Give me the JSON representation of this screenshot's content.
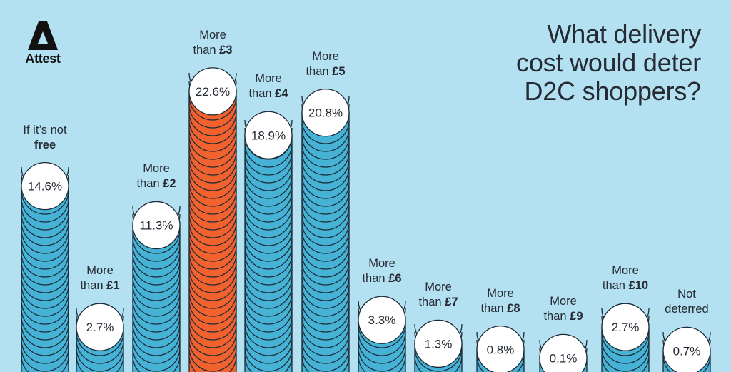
{
  "brand": {
    "name": "Attest",
    "logo_icon": "attest-triangle-logo"
  },
  "title_lines": [
    "What delivery",
    "cost would deter",
    "D2C shoppers?"
  ],
  "colors": {
    "background": "#b3e1f1",
    "stack_default": "#46b3d6",
    "stack_highlight": "#f2622e",
    "cap": "#ffffff",
    "outline": "#1c2a36",
    "text": "#252a33"
  },
  "chart_data": {
    "type": "bar",
    "style": "stacked-coins",
    "title": "What delivery cost would deter D2C shoppers?",
    "xlabel": "",
    "ylabel": "",
    "unit": "%",
    "categories": [
      {
        "line1": "If it’s not",
        "line2_plain": "",
        "line2_bold": "free"
      },
      {
        "line1": "More",
        "line2_plain": "than ",
        "line2_bold": "£1"
      },
      {
        "line1": "More",
        "line2_plain": "than ",
        "line2_bold": "£2"
      },
      {
        "line1": "More",
        "line2_plain": "than ",
        "line2_bold": "£3"
      },
      {
        "line1": "More",
        "line2_plain": "than ",
        "line2_bold": "£4"
      },
      {
        "line1": "More",
        "line2_plain": "than ",
        "line2_bold": "£5"
      },
      {
        "line1": "More",
        "line2_plain": "than ",
        "line2_bold": "£6"
      },
      {
        "line1": "More",
        "line2_plain": "than ",
        "line2_bold": "£7"
      },
      {
        "line1": "More",
        "line2_plain": "than ",
        "line2_bold": "£8"
      },
      {
        "line1": "More",
        "line2_plain": "than ",
        "line2_bold": "£9"
      },
      {
        "line1": "More",
        "line2_plain": "than ",
        "line2_bold": "£10"
      },
      {
        "line1": "Not",
        "line2_plain": "deterred",
        "line2_bold": ""
      }
    ],
    "values": [
      14.6,
      2.7,
      11.3,
      22.6,
      18.9,
      20.8,
      3.3,
      1.3,
      0.8,
      0.1,
      2.7,
      0.7
    ],
    "value_labels": [
      "14.6%",
      "2.7%",
      "11.3%",
      "22.6%",
      "18.9%",
      "20.8%",
      "3.3%",
      "1.3%",
      "0.8%",
      "0.1%",
      "2.7%",
      "0.7%"
    ],
    "highlight_index": 3,
    "ylim": [
      0,
      25
    ],
    "grid": false,
    "legend": "none"
  }
}
